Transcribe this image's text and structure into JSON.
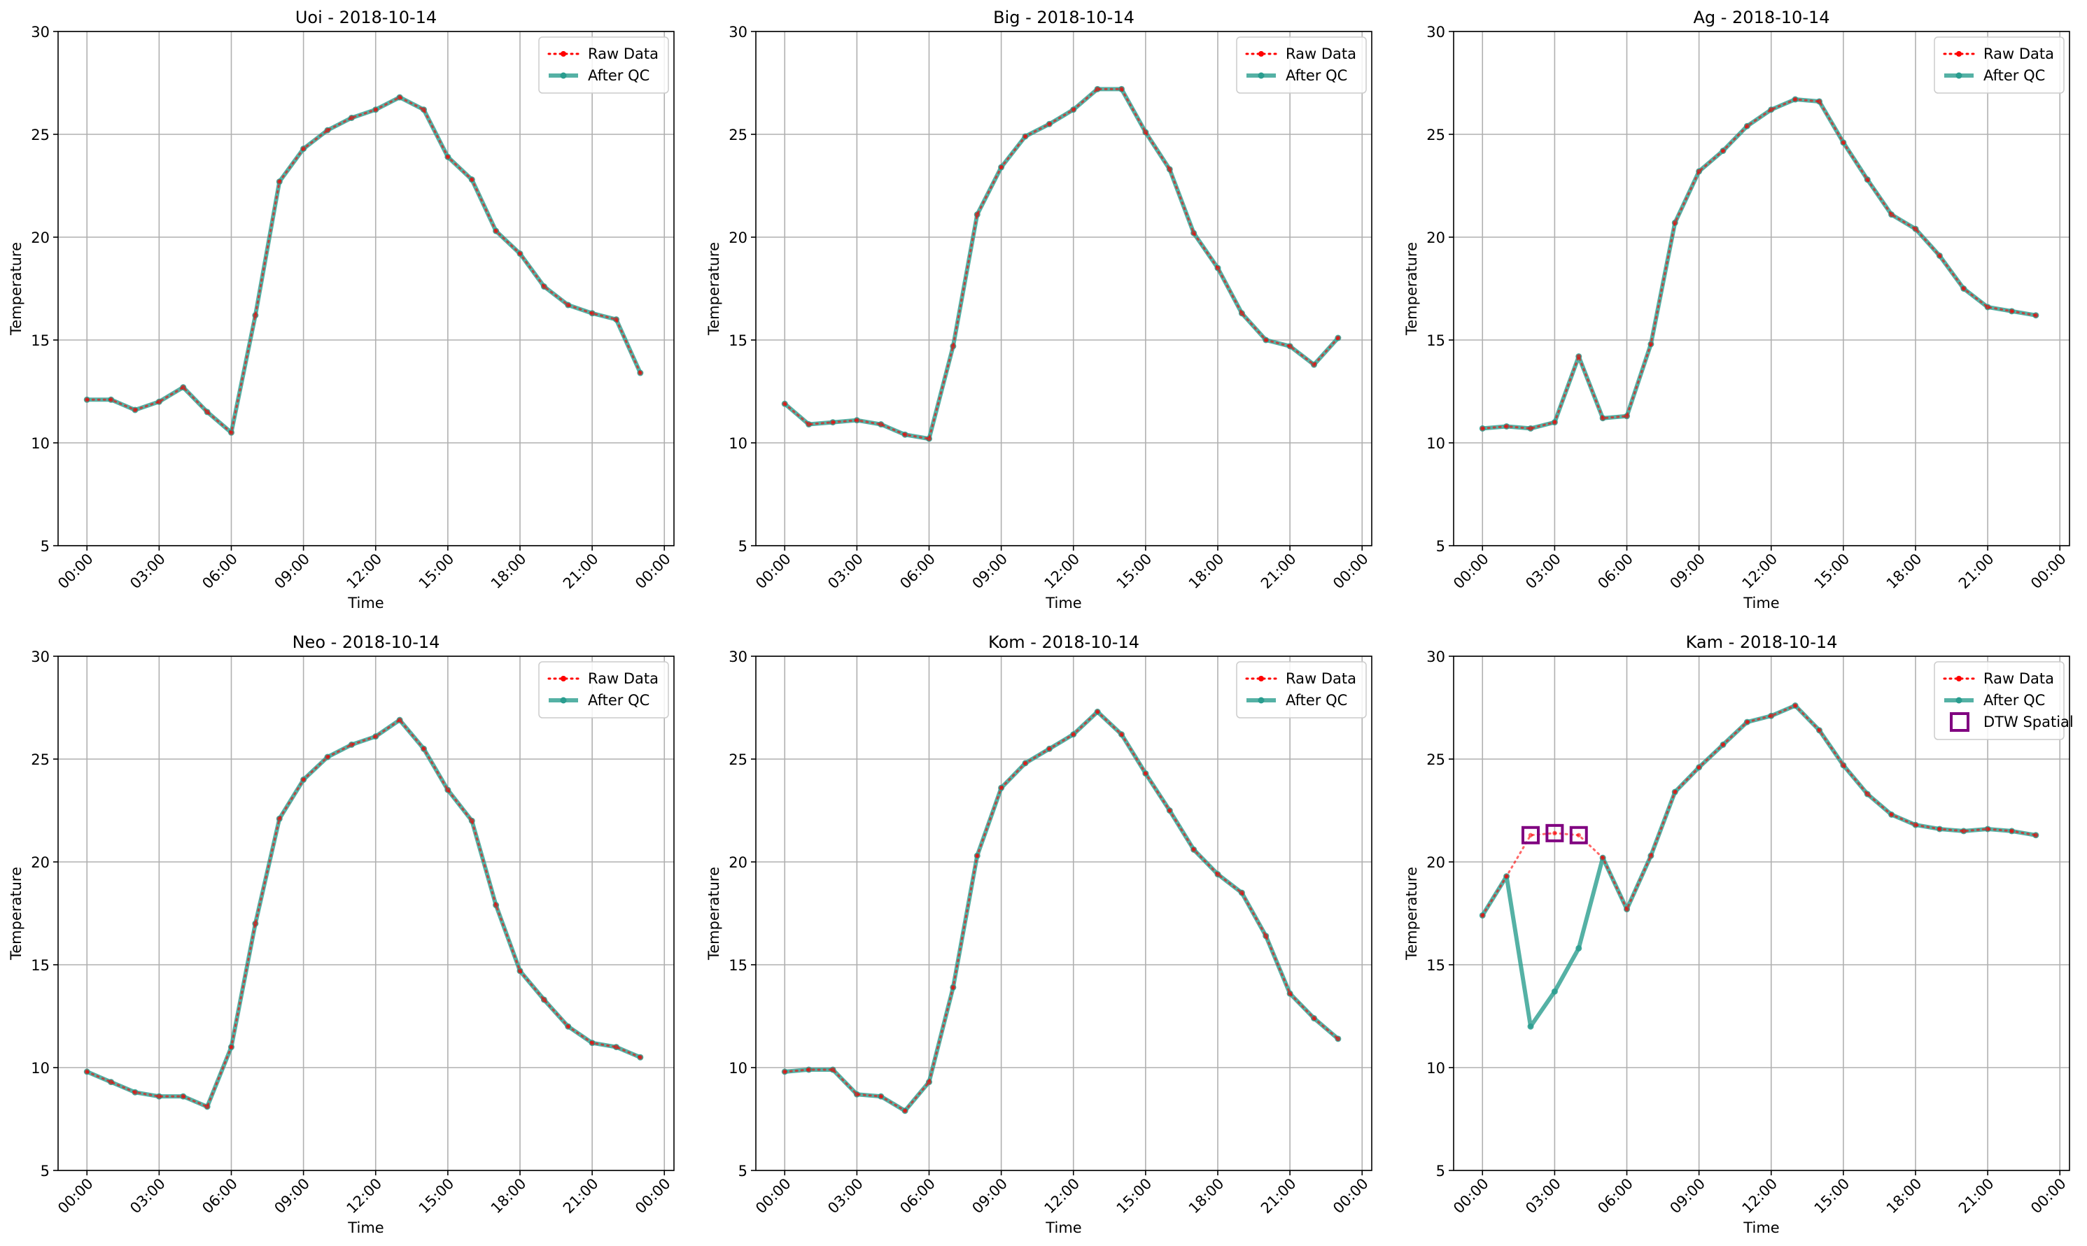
{
  "chart_data": [
    {
      "type": "line",
      "title": "Uoi - 2018-10-14",
      "xlabel": "Time",
      "ylabel": "Temperature",
      "ylim": [
        5,
        30
      ],
      "yticks": [
        5,
        10,
        15,
        20,
        25,
        30
      ],
      "xticks": [
        "00:00",
        "03:00",
        "06:00",
        "09:00",
        "12:00",
        "15:00",
        "18:00",
        "21:00",
        "00:00"
      ],
      "grid": true,
      "legend_position": "top-right",
      "legend": [
        "Raw Data",
        "After QC"
      ],
      "series": [
        {
          "name": "Raw Data",
          "color": "#ff0000",
          "style": "dotted",
          "x": [
            0,
            1,
            2,
            3,
            4,
            5,
            6,
            7,
            8,
            9,
            10,
            11,
            12,
            13,
            14,
            15,
            16,
            17,
            18,
            19,
            20,
            21,
            22,
            23
          ],
          "y": [
            12.1,
            12.1,
            11.6,
            12.0,
            12.7,
            11.5,
            10.5,
            16.2,
            22.7,
            24.3,
            25.2,
            25.8,
            26.2,
            26.8,
            26.2,
            23.9,
            22.8,
            20.3,
            19.2,
            17.6,
            16.7,
            16.3,
            16.0,
            13.4
          ]
        },
        {
          "name": "After QC",
          "color": "#2a9d8f",
          "style": "solid",
          "x": [
            0,
            1,
            2,
            3,
            4,
            5,
            6,
            7,
            8,
            9,
            10,
            11,
            12,
            13,
            14,
            15,
            16,
            17,
            18,
            19,
            20,
            21,
            22,
            23
          ],
          "y": [
            12.1,
            12.1,
            11.6,
            12.0,
            12.7,
            11.5,
            10.5,
            16.2,
            22.7,
            24.3,
            25.2,
            25.8,
            26.2,
            26.8,
            26.2,
            23.9,
            22.8,
            20.3,
            19.2,
            17.6,
            16.7,
            16.3,
            16.0,
            13.4
          ]
        }
      ]
    },
    {
      "type": "line",
      "title": "Big - 2018-10-14",
      "xlabel": "Time",
      "ylabel": "Temperature",
      "ylim": [
        5,
        30
      ],
      "yticks": [
        5,
        10,
        15,
        20,
        25,
        30
      ],
      "xticks": [
        "00:00",
        "03:00",
        "06:00",
        "09:00",
        "12:00",
        "15:00",
        "18:00",
        "21:00",
        "00:00"
      ],
      "grid": true,
      "legend_position": "top-right",
      "legend": [
        "Raw Data",
        "After QC"
      ],
      "series": [
        {
          "name": "Raw Data",
          "color": "#ff0000",
          "style": "dotted",
          "x": [
            0,
            1,
            2,
            3,
            4,
            5,
            6,
            7,
            8,
            9,
            10,
            11,
            12,
            13,
            14,
            15,
            16,
            17,
            18,
            19,
            20,
            21,
            22,
            23
          ],
          "y": [
            11.9,
            10.9,
            11.0,
            11.1,
            10.9,
            10.4,
            10.2,
            14.7,
            21.1,
            23.4,
            24.9,
            25.5,
            26.2,
            27.2,
            27.2,
            25.1,
            23.3,
            20.2,
            18.5,
            16.3,
            15.0,
            14.7,
            13.8,
            15.1
          ]
        },
        {
          "name": "After QC",
          "color": "#2a9d8f",
          "style": "solid",
          "x": [
            0,
            1,
            2,
            3,
            4,
            5,
            6,
            7,
            8,
            9,
            10,
            11,
            12,
            13,
            14,
            15,
            16,
            17,
            18,
            19,
            20,
            21,
            22,
            23
          ],
          "y": [
            11.9,
            10.9,
            11.0,
            11.1,
            10.9,
            10.4,
            10.2,
            14.7,
            21.1,
            23.4,
            24.9,
            25.5,
            26.2,
            27.2,
            27.2,
            25.1,
            23.3,
            20.2,
            18.5,
            16.3,
            15.0,
            14.7,
            13.8,
            15.1
          ]
        }
      ]
    },
    {
      "type": "line",
      "title": "Ag - 2018-10-14",
      "xlabel": "Time",
      "ylabel": "Temperature",
      "ylim": [
        5,
        30
      ],
      "yticks": [
        5,
        10,
        15,
        20,
        25,
        30
      ],
      "xticks": [
        "00:00",
        "03:00",
        "06:00",
        "09:00",
        "12:00",
        "15:00",
        "18:00",
        "21:00",
        "00:00"
      ],
      "grid": true,
      "legend_position": "top-right",
      "legend": [
        "Raw Data",
        "After QC"
      ],
      "series": [
        {
          "name": "Raw Data",
          "color": "#ff0000",
          "style": "dotted",
          "x": [
            0,
            1,
            2,
            3,
            4,
            5,
            6,
            7,
            8,
            9,
            10,
            11,
            12,
            13,
            14,
            15,
            16,
            17,
            18,
            19,
            20,
            21,
            22,
            23
          ],
          "y": [
            10.7,
            10.8,
            10.7,
            11.0,
            14.2,
            11.2,
            11.3,
            14.8,
            20.7,
            23.2,
            24.2,
            25.4,
            26.2,
            26.7,
            26.6,
            24.6,
            22.8,
            21.1,
            20.4,
            19.1,
            17.5,
            16.6,
            16.4,
            16.2
          ]
        },
        {
          "name": "After QC",
          "color": "#2a9d8f",
          "style": "solid",
          "x": [
            0,
            1,
            2,
            3,
            4,
            5,
            6,
            7,
            8,
            9,
            10,
            11,
            12,
            13,
            14,
            15,
            16,
            17,
            18,
            19,
            20,
            21,
            22,
            23
          ],
          "y": [
            10.7,
            10.8,
            10.7,
            11.0,
            14.2,
            11.2,
            11.3,
            14.8,
            20.7,
            23.2,
            24.2,
            25.4,
            26.2,
            26.7,
            26.6,
            24.6,
            22.8,
            21.1,
            20.4,
            19.1,
            17.5,
            16.6,
            16.4,
            16.2
          ]
        }
      ]
    },
    {
      "type": "line",
      "title": "Neo - 2018-10-14",
      "xlabel": "Time",
      "ylabel": "Temperature",
      "ylim": [
        5,
        30
      ],
      "yticks": [
        5,
        10,
        15,
        20,
        25,
        30
      ],
      "xticks": [
        "00:00",
        "03:00",
        "06:00",
        "09:00",
        "12:00",
        "15:00",
        "18:00",
        "21:00",
        "00:00"
      ],
      "grid": true,
      "legend_position": "top-right",
      "legend": [
        "Raw Data",
        "After QC"
      ],
      "series": [
        {
          "name": "Raw Data",
          "color": "#ff0000",
          "style": "dotted",
          "x": [
            0,
            1,
            2,
            3,
            4,
            5,
            6,
            7,
            8,
            9,
            10,
            11,
            12,
            13,
            14,
            15,
            16,
            17,
            18,
            19,
            20,
            21,
            22,
            23
          ],
          "y": [
            9.8,
            9.3,
            8.8,
            8.6,
            8.6,
            8.1,
            11.0,
            17.0,
            22.1,
            24.0,
            25.1,
            25.7,
            26.1,
            26.9,
            25.5,
            23.5,
            22.0,
            17.9,
            14.7,
            13.3,
            12.0,
            11.2,
            11.0,
            10.5
          ]
        },
        {
          "name": "After QC",
          "color": "#2a9d8f",
          "style": "solid",
          "x": [
            0,
            1,
            2,
            3,
            4,
            5,
            6,
            7,
            8,
            9,
            10,
            11,
            12,
            13,
            14,
            15,
            16,
            17,
            18,
            19,
            20,
            21,
            22,
            23
          ],
          "y": [
            9.8,
            9.3,
            8.8,
            8.6,
            8.6,
            8.1,
            11.0,
            17.0,
            22.1,
            24.0,
            25.1,
            25.7,
            26.1,
            26.9,
            25.5,
            23.5,
            22.0,
            17.9,
            14.7,
            13.3,
            12.0,
            11.2,
            11.0,
            10.5
          ]
        }
      ]
    },
    {
      "type": "line",
      "title": "Kom - 2018-10-14",
      "xlabel": "Time",
      "ylabel": "Temperature",
      "ylim": [
        5,
        30
      ],
      "yticks": [
        5,
        10,
        15,
        20,
        25,
        30
      ],
      "xticks": [
        "00:00",
        "03:00",
        "06:00",
        "09:00",
        "12:00",
        "15:00",
        "18:00",
        "21:00",
        "00:00"
      ],
      "grid": true,
      "legend_position": "top-right",
      "legend": [
        "Raw Data",
        "After QC"
      ],
      "series": [
        {
          "name": "Raw Data",
          "color": "#ff0000",
          "style": "dotted",
          "x": [
            0,
            1,
            2,
            3,
            4,
            5,
            6,
            7,
            8,
            9,
            10,
            11,
            12,
            13,
            14,
            15,
            16,
            17,
            18,
            19,
            20,
            21,
            22,
            23
          ],
          "y": [
            9.8,
            9.9,
            9.9,
            8.7,
            8.6,
            7.9,
            9.3,
            13.9,
            20.3,
            23.6,
            24.8,
            25.5,
            26.2,
            27.3,
            26.2,
            24.3,
            22.5,
            20.6,
            19.4,
            18.5,
            16.4,
            13.6,
            12.4,
            11.4
          ]
        },
        {
          "name": "After QC",
          "color": "#2a9d8f",
          "style": "solid",
          "x": [
            0,
            1,
            2,
            3,
            4,
            5,
            6,
            7,
            8,
            9,
            10,
            11,
            12,
            13,
            14,
            15,
            16,
            17,
            18,
            19,
            20,
            21,
            22,
            23
          ],
          "y": [
            9.8,
            9.9,
            9.9,
            8.7,
            8.6,
            7.9,
            9.3,
            13.9,
            20.3,
            23.6,
            24.8,
            25.5,
            26.2,
            27.3,
            26.2,
            24.3,
            22.5,
            20.6,
            19.4,
            18.5,
            16.4,
            13.6,
            12.4,
            11.4
          ]
        }
      ]
    },
    {
      "type": "line",
      "title": "Kam - 2018-10-14",
      "xlabel": "Time",
      "ylabel": "Temperature",
      "ylim": [
        5,
        30
      ],
      "yticks": [
        5,
        10,
        15,
        20,
        25,
        30
      ],
      "xticks": [
        "00:00",
        "03:00",
        "06:00",
        "09:00",
        "12:00",
        "15:00",
        "18:00",
        "21:00",
        "00:00"
      ],
      "grid": true,
      "legend_position": "top-right",
      "legend": [
        "Raw Data",
        "After QC",
        "DTW Spatial"
      ],
      "series": [
        {
          "name": "Raw Data",
          "color": "#ff0000",
          "style": "dotted",
          "x": [
            0,
            1,
            2,
            3,
            4,
            5,
            6,
            7,
            8,
            9,
            10,
            11,
            12,
            13,
            14,
            15,
            16,
            17,
            18,
            19,
            20,
            21,
            22,
            23
          ],
          "y": [
            17.4,
            19.3,
            21.3,
            21.4,
            21.3,
            20.2,
            17.7,
            20.3,
            23.4,
            24.6,
            25.7,
            26.8,
            27.1,
            27.6,
            26.4,
            24.7,
            23.3,
            22.3,
            21.8,
            21.6,
            21.5,
            21.6,
            21.5,
            21.3
          ]
        },
        {
          "name": "After QC",
          "color": "#2a9d8f",
          "style": "solid",
          "x": [
            0,
            1,
            2,
            3,
            4,
            5,
            6,
            7,
            8,
            9,
            10,
            11,
            12,
            13,
            14,
            15,
            16,
            17,
            18,
            19,
            20,
            21,
            22,
            23
          ],
          "y": [
            17.4,
            19.3,
            12.0,
            13.7,
            15.8,
            20.2,
            17.7,
            20.3,
            23.4,
            24.6,
            25.7,
            26.8,
            27.1,
            27.6,
            26.4,
            24.7,
            23.3,
            22.3,
            21.8,
            21.6,
            21.5,
            21.6,
            21.5,
            21.3
          ]
        }
      ],
      "markers": {
        "name": "DTW Spatial",
        "color": "#800080",
        "x": [
          2,
          3,
          4
        ],
        "y": [
          21.3,
          21.4,
          21.3
        ]
      }
    }
  ]
}
